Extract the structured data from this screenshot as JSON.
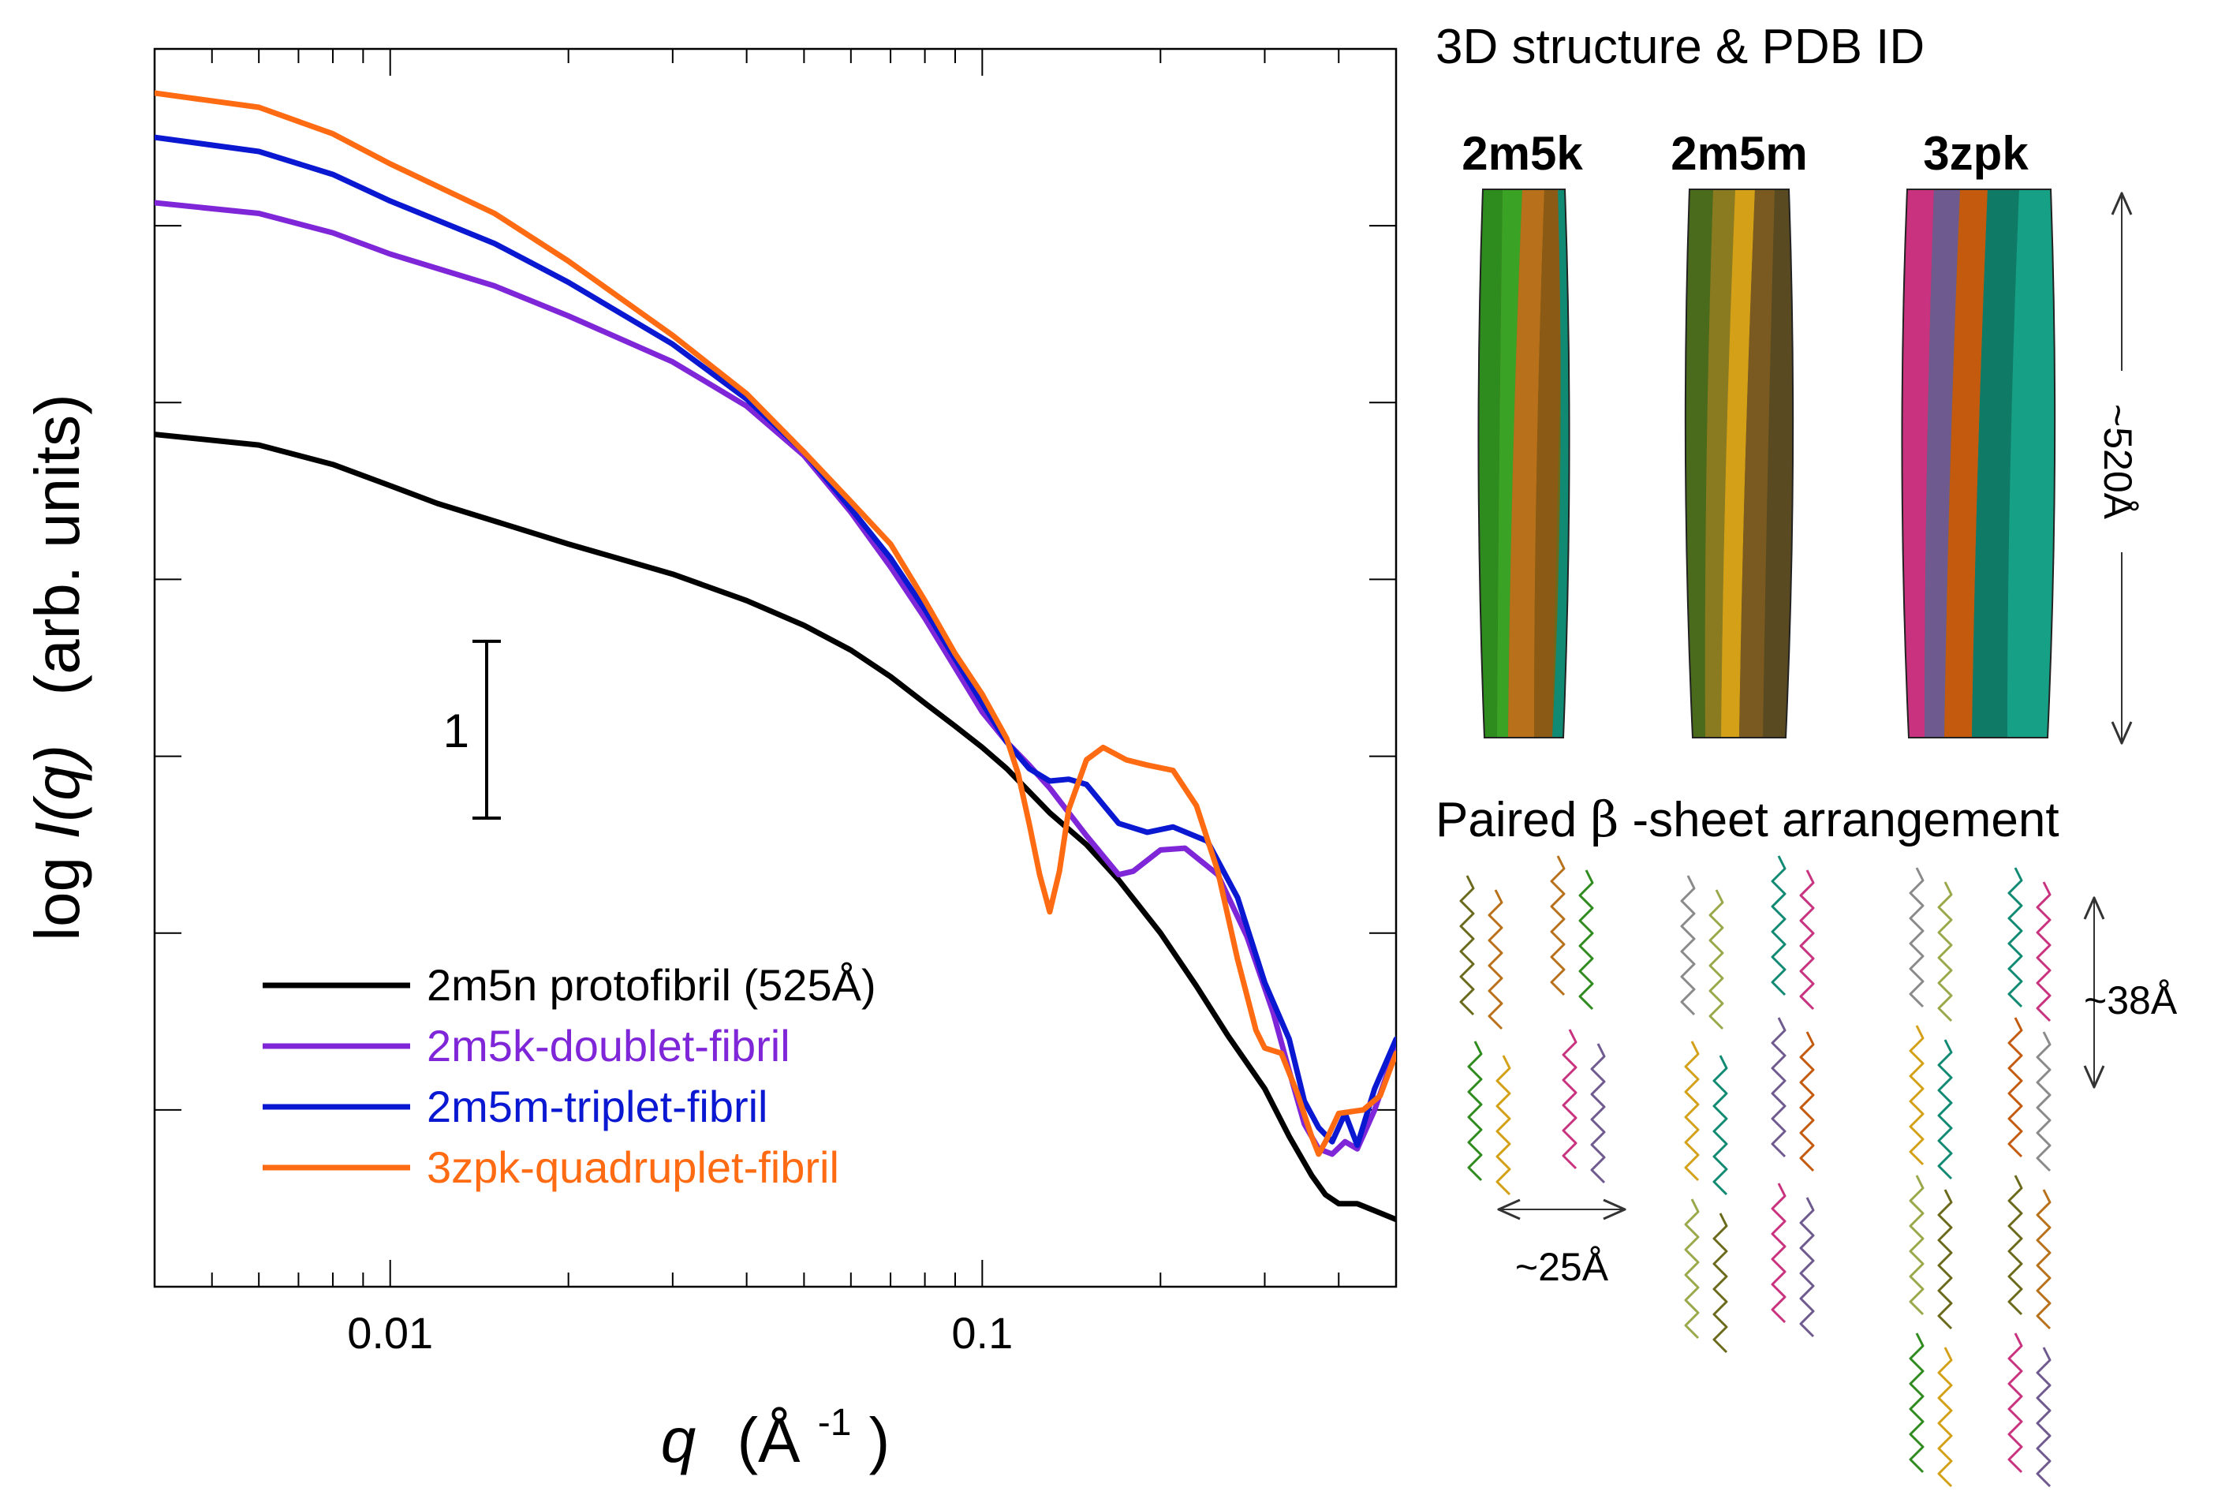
{
  "chart_data": {
    "type": "line",
    "xscale": "log",
    "xlim": [
      0.004,
      0.5
    ],
    "ylim": [
      0,
      7
    ],
    "xlabel_var": "q",
    "xlabel_unit": "(Å",
    "xlabel_sup": "-1",
    "xlabel_close": ")",
    "ylabel_prefix": "log ",
    "ylabel_var": "I(q)",
    "ylabel_unit": "(arb. units)",
    "xticks": [
      {
        "value": 0.01,
        "label": "0.01"
      },
      {
        "value": 0.1,
        "label": "0.1"
      }
    ],
    "scale_bar_label": "1",
    "scale_bar_range": [
      2.65,
      3.65
    ],
    "series": [
      {
        "name": "2m5n protofibril (525Å)",
        "color": "#000000",
        "points": [
          [
            0.004,
            4.82
          ],
          [
            0.006,
            4.76
          ],
          [
            0.008,
            4.65
          ],
          [
            0.01,
            4.53
          ],
          [
            0.012,
            4.43
          ],
          [
            0.015,
            4.33
          ],
          [
            0.02,
            4.2
          ],
          [
            0.03,
            4.03
          ],
          [
            0.04,
            3.88
          ],
          [
            0.05,
            3.74
          ],
          [
            0.06,
            3.6
          ],
          [
            0.07,
            3.45
          ],
          [
            0.08,
            3.3
          ],
          [
            0.09,
            3.17
          ],
          [
            0.1,
            3.05
          ],
          [
            0.11,
            2.93
          ],
          [
            0.12,
            2.8
          ],
          [
            0.13,
            2.68
          ],
          [
            0.15,
            2.5
          ],
          [
            0.17,
            2.3
          ],
          [
            0.2,
            2.0
          ],
          [
            0.23,
            1.7
          ],
          [
            0.26,
            1.42
          ],
          [
            0.3,
            1.12
          ],
          [
            0.33,
            0.85
          ],
          [
            0.36,
            0.63
          ],
          [
            0.38,
            0.52
          ],
          [
            0.4,
            0.47
          ],
          [
            0.43,
            0.47
          ],
          [
            0.46,
            0.43
          ],
          [
            0.5,
            0.38
          ]
        ]
      },
      {
        "name": "2m5k-doublet-fibril",
        "color": "#7f26d8",
        "points": [
          [
            0.004,
            6.13
          ],
          [
            0.006,
            6.07
          ],
          [
            0.008,
            5.96
          ],
          [
            0.01,
            5.84
          ],
          [
            0.015,
            5.66
          ],
          [
            0.02,
            5.49
          ],
          [
            0.03,
            5.23
          ],
          [
            0.04,
            4.98
          ],
          [
            0.05,
            4.7
          ],
          [
            0.06,
            4.38
          ],
          [
            0.07,
            4.07
          ],
          [
            0.08,
            3.78
          ],
          [
            0.09,
            3.5
          ],
          [
            0.1,
            3.25
          ],
          [
            0.11,
            3.08
          ],
          [
            0.12,
            2.95
          ],
          [
            0.13,
            2.82
          ],
          [
            0.15,
            2.55
          ],
          [
            0.17,
            2.33
          ],
          [
            0.18,
            2.35
          ],
          [
            0.2,
            2.47
          ],
          [
            0.22,
            2.48
          ],
          [
            0.25,
            2.33
          ],
          [
            0.28,
            1.98
          ],
          [
            0.31,
            1.55
          ],
          [
            0.33,
            1.22
          ],
          [
            0.35,
            0.92
          ],
          [
            0.37,
            0.78
          ],
          [
            0.39,
            0.75
          ],
          [
            0.41,
            0.82
          ],
          [
            0.43,
            0.78
          ],
          [
            0.46,
            1.0
          ],
          [
            0.5,
            1.35
          ]
        ]
      },
      {
        "name": "2m5m-triplet-fibril",
        "color": "#0a18d2",
        "points": [
          [
            0.004,
            6.5
          ],
          [
            0.006,
            6.42
          ],
          [
            0.008,
            6.29
          ],
          [
            0.01,
            6.14
          ],
          [
            0.015,
            5.9
          ],
          [
            0.02,
            5.68
          ],
          [
            0.03,
            5.33
          ],
          [
            0.04,
            5.02
          ],
          [
            0.05,
            4.72
          ],
          [
            0.06,
            4.4
          ],
          [
            0.07,
            4.12
          ],
          [
            0.08,
            3.83
          ],
          [
            0.09,
            3.55
          ],
          [
            0.1,
            3.3
          ],
          [
            0.11,
            3.08
          ],
          [
            0.12,
            2.93
          ],
          [
            0.13,
            2.86
          ],
          [
            0.14,
            2.87
          ],
          [
            0.15,
            2.84
          ],
          [
            0.17,
            2.62
          ],
          [
            0.19,
            2.57
          ],
          [
            0.21,
            2.6
          ],
          [
            0.24,
            2.52
          ],
          [
            0.27,
            2.2
          ],
          [
            0.3,
            1.72
          ],
          [
            0.33,
            1.4
          ],
          [
            0.35,
            1.05
          ],
          [
            0.37,
            0.9
          ],
          [
            0.39,
            0.82
          ],
          [
            0.41,
            0.98
          ],
          [
            0.43,
            0.8
          ],
          [
            0.46,
            1.12
          ],
          [
            0.5,
            1.4
          ]
        ]
      },
      {
        "name": "3zpk-quadruplet-fibril",
        "color": "#ff6b12",
        "points": [
          [
            0.004,
            6.75
          ],
          [
            0.006,
            6.67
          ],
          [
            0.008,
            6.52
          ],
          [
            0.01,
            6.35
          ],
          [
            0.015,
            6.07
          ],
          [
            0.02,
            5.8
          ],
          [
            0.03,
            5.38
          ],
          [
            0.04,
            5.05
          ],
          [
            0.05,
            4.72
          ],
          [
            0.06,
            4.44
          ],
          [
            0.07,
            4.2
          ],
          [
            0.08,
            3.88
          ],
          [
            0.09,
            3.58
          ],
          [
            0.1,
            3.35
          ],
          [
            0.11,
            3.1
          ],
          [
            0.115,
            2.9
          ],
          [
            0.12,
            2.62
          ],
          [
            0.125,
            2.33
          ],
          [
            0.13,
            2.12
          ],
          [
            0.135,
            2.35
          ],
          [
            0.14,
            2.7
          ],
          [
            0.15,
            2.98
          ],
          [
            0.16,
            3.05
          ],
          [
            0.175,
            2.98
          ],
          [
            0.19,
            2.95
          ],
          [
            0.21,
            2.92
          ],
          [
            0.23,
            2.72
          ],
          [
            0.25,
            2.35
          ],
          [
            0.27,
            1.85
          ],
          [
            0.29,
            1.45
          ],
          [
            0.3,
            1.35
          ],
          [
            0.32,
            1.32
          ],
          [
            0.34,
            1.1
          ],
          [
            0.36,
            0.85
          ],
          [
            0.37,
            0.75
          ],
          [
            0.38,
            0.82
          ],
          [
            0.4,
            0.98
          ],
          [
            0.44,
            1.0
          ],
          [
            0.47,
            1.08
          ],
          [
            0.5,
            1.32
          ]
        ]
      }
    ]
  },
  "right_panel": {
    "structure_title": "3D structure & PDB ID",
    "pdb_ids": [
      "2m5k",
      "2m5m",
      "3zpk"
    ],
    "length_label": "~520Å",
    "arrangement_title_pre": "Paired ",
    "arrangement_title_beta": "β",
    "arrangement_title_post": "-sheet arrangement",
    "spacing_38_label": "~38Å",
    "spacing_25_label": "~25Å"
  },
  "colors": {
    "green": "#2e8b1e",
    "orange": "#b8701a",
    "olive": "#6b6a1c",
    "yellow": "#d4a017",
    "teal": "#118a74",
    "magenta": "#c8327e",
    "purple": "#6e5a8e",
    "darkorange": "#c45a0e"
  }
}
